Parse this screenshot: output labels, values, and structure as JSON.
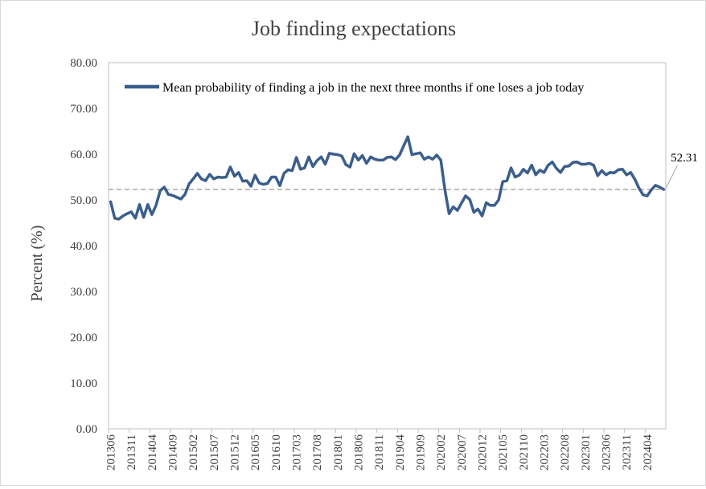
{
  "chart_data": {
    "type": "line",
    "title": "Job finding expectations",
    "xlabel": "",
    "ylabel": "Percent (%)",
    "ylim": [
      0,
      80
    ],
    "y_ticks": [
      "0.00",
      "10.00",
      "20.00",
      "30.00",
      "40.00",
      "50.00",
      "60.00",
      "70.00",
      "80.00"
    ],
    "x_tick_labels": [
      "201306",
      "201311",
      "201404",
      "201409",
      "201502",
      "201507",
      "201512",
      "201605",
      "201610",
      "201703",
      "201708",
      "201801",
      "201806",
      "201811",
      "201904",
      "201909",
      "202002",
      "202007",
      "202012",
      "202105",
      "202110",
      "202203",
      "202208",
      "202301",
      "202306",
      "202311",
      "202404"
    ],
    "grid": false,
    "legend_position": "top",
    "reference_line": {
      "value": 52.31,
      "label": "52.31"
    },
    "series": [
      {
        "name": "Mean probability of finding a job in the next three months if one loses a job today",
        "color": "#3b5e8c",
        "start": "201306",
        "values": [
          49.6,
          46.0,
          45.8,
          46.5,
          47.0,
          47.4,
          46.0,
          49.0,
          46.2,
          49.0,
          46.8,
          48.8,
          52.0,
          52.8,
          51.2,
          51.0,
          50.6,
          50.2,
          51.2,
          53.5,
          54.6,
          55.8,
          54.6,
          54.2,
          55.6,
          54.6,
          55.0,
          54.9,
          55.0,
          57.2,
          55.2,
          56.0,
          54.1,
          54.2,
          53.0,
          55.4,
          53.7,
          53.4,
          53.6,
          55.0,
          55.0,
          53.1,
          55.8,
          56.6,
          56.4,
          59.3,
          56.7,
          57.0,
          59.4,
          57.3,
          58.6,
          59.4,
          57.8,
          60.2,
          60.0,
          59.9,
          59.6,
          57.7,
          57.2,
          60.1,
          58.7,
          59.7,
          58.0,
          59.4,
          58.9,
          58.7,
          58.7,
          59.3,
          59.4,
          58.8,
          59.8,
          61.8,
          63.8,
          59.9,
          60.1,
          60.3,
          58.9,
          59.4,
          58.9,
          59.8,
          58.7,
          52.1,
          47.0,
          48.5,
          47.7,
          49.3,
          50.9,
          50.1,
          47.3,
          48.0,
          46.5,
          49.4,
          48.8,
          48.8,
          50.0,
          54.0,
          54.2,
          57.0,
          55.0,
          55.4,
          56.7,
          55.9,
          57.6,
          55.5,
          56.5,
          56.0,
          57.6,
          58.3,
          56.9,
          56.0,
          57.3,
          57.4,
          58.2,
          58.3,
          57.8,
          57.8,
          58.0,
          57.6,
          55.3,
          56.4,
          55.5,
          56.0,
          55.9,
          56.6,
          56.7,
          55.5,
          56.0,
          54.5,
          52.6,
          51.1,
          50.9,
          52.2,
          53.2,
          52.8,
          52.3
        ]
      }
    ]
  }
}
